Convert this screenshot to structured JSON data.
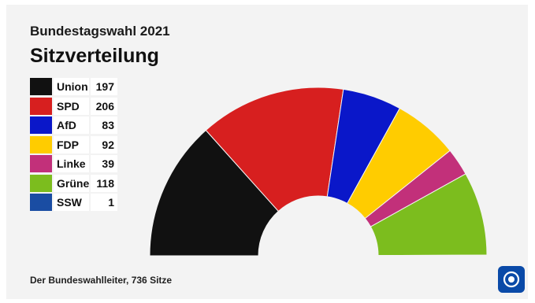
{
  "header": {
    "subtitle": "Bundestagswahl 2021",
    "title": "Sitzverteilung"
  },
  "footer": {
    "source": "Der Bundeswahlleiter, 736 Sitze"
  },
  "logo": {
    "icon": "tagesschau-logo-icon",
    "color": "#0a4aa8"
  },
  "chart_data": {
    "type": "pie",
    "variant": "half-donut",
    "title": "Sitzverteilung",
    "total": 736,
    "legend_position": "left",
    "categories": [
      "Union",
      "SPD",
      "AfD",
      "FDP",
      "Linke",
      "Grüne",
      "SSW"
    ],
    "values": [
      197,
      206,
      83,
      92,
      39,
      118,
      1
    ],
    "colors": [
      "#111111",
      "#d71f1f",
      "#0a17c9",
      "#ffcc00",
      "#c2307a",
      "#7cbd1e",
      "#1a4da3"
    ]
  }
}
